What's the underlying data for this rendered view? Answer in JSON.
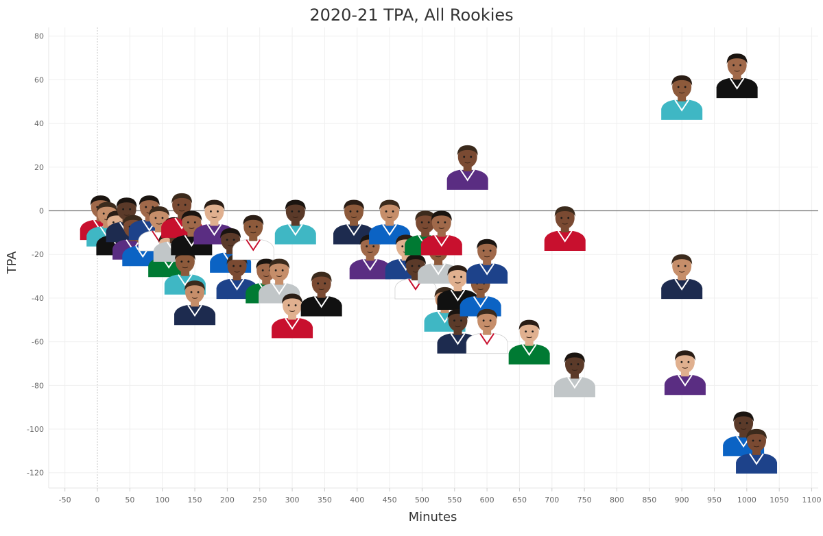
{
  "chart_data": {
    "type": "scatter",
    "title": "2020-21 TPA, All Rookies",
    "xlabel": "Minutes",
    "ylabel": "TPA",
    "xlim": [
      -75,
      1110
    ],
    "ylim": [
      -127,
      84
    ],
    "xticks": [
      -50,
      0,
      50,
      100,
      150,
      200,
      250,
      300,
      350,
      400,
      450,
      500,
      550,
      600,
      650,
      700,
      750,
      800,
      850,
      900,
      950,
      1000,
      1050,
      1100
    ],
    "yticks": [
      80,
      60,
      40,
      20,
      0,
      -20,
      -40,
      -60,
      -80,
      -100,
      -120
    ],
    "marker": "player-headshot",
    "reference_line_y": 0,
    "grid": true,
    "jersey_colors": [
      "#1d2b4f",
      "#c8102e",
      "#ffffff",
      "#5a2d82",
      "#3fb7c4",
      "#007a33",
      "#0b63c4",
      "#111111",
      "#c1c6c8",
      "#1d428a"
    ],
    "points": [
      {
        "x": 5,
        "y": -3
      },
      {
        "x": 15,
        "y": -6
      },
      {
        "x": 30,
        "y": -10
      },
      {
        "x": 45,
        "y": -4
      },
      {
        "x": 55,
        "y": -12
      },
      {
        "x": 70,
        "y": -15
      },
      {
        "x": 80,
        "y": -3
      },
      {
        "x": 95,
        "y": -8
      },
      {
        "x": 110,
        "y": -20
      },
      {
        "x": 118,
        "y": -13
      },
      {
        "x": 130,
        "y": -2
      },
      {
        "x": 135,
        "y": -28
      },
      {
        "x": 145,
        "y": -10
      },
      {
        "x": 150,
        "y": -42
      },
      {
        "x": 180,
        "y": -5
      },
      {
        "x": 205,
        "y": -18
      },
      {
        "x": 215,
        "y": -30
      },
      {
        "x": 240,
        "y": -12
      },
      {
        "x": 260,
        "y": -32
      },
      {
        "x": 280,
        "y": -32
      },
      {
        "x": 300,
        "y": -48
      },
      {
        "x": 305,
        "y": -5
      },
      {
        "x": 345,
        "y": -38
      },
      {
        "x": 395,
        "y": -5
      },
      {
        "x": 420,
        "y": -21
      },
      {
        "x": 450,
        "y": -5
      },
      {
        "x": 475,
        "y": -21
      },
      {
        "x": 490,
        "y": -30
      },
      {
        "x": 505,
        "y": -10
      },
      {
        "x": 525,
        "y": -23
      },
      {
        "x": 530,
        "y": -10
      },
      {
        "x": 535,
        "y": -45
      },
      {
        "x": 555,
        "y": -35
      },
      {
        "x": 555,
        "y": -55
      },
      {
        "x": 570,
        "y": 20
      },
      {
        "x": 590,
        "y": -38
      },
      {
        "x": 600,
        "y": -23
      },
      {
        "x": 600,
        "y": -55
      },
      {
        "x": 665,
        "y": -60
      },
      {
        "x": 735,
        "y": -75
      },
      {
        "x": 720,
        "y": -8
      },
      {
        "x": 900,
        "y": 52
      },
      {
        "x": 985,
        "y": 62
      },
      {
        "x": 900,
        "y": -30
      },
      {
        "x": 905,
        "y": -74
      },
      {
        "x": 995,
        "y": -102
      },
      {
        "x": 1015,
        "y": -110
      }
    ]
  }
}
